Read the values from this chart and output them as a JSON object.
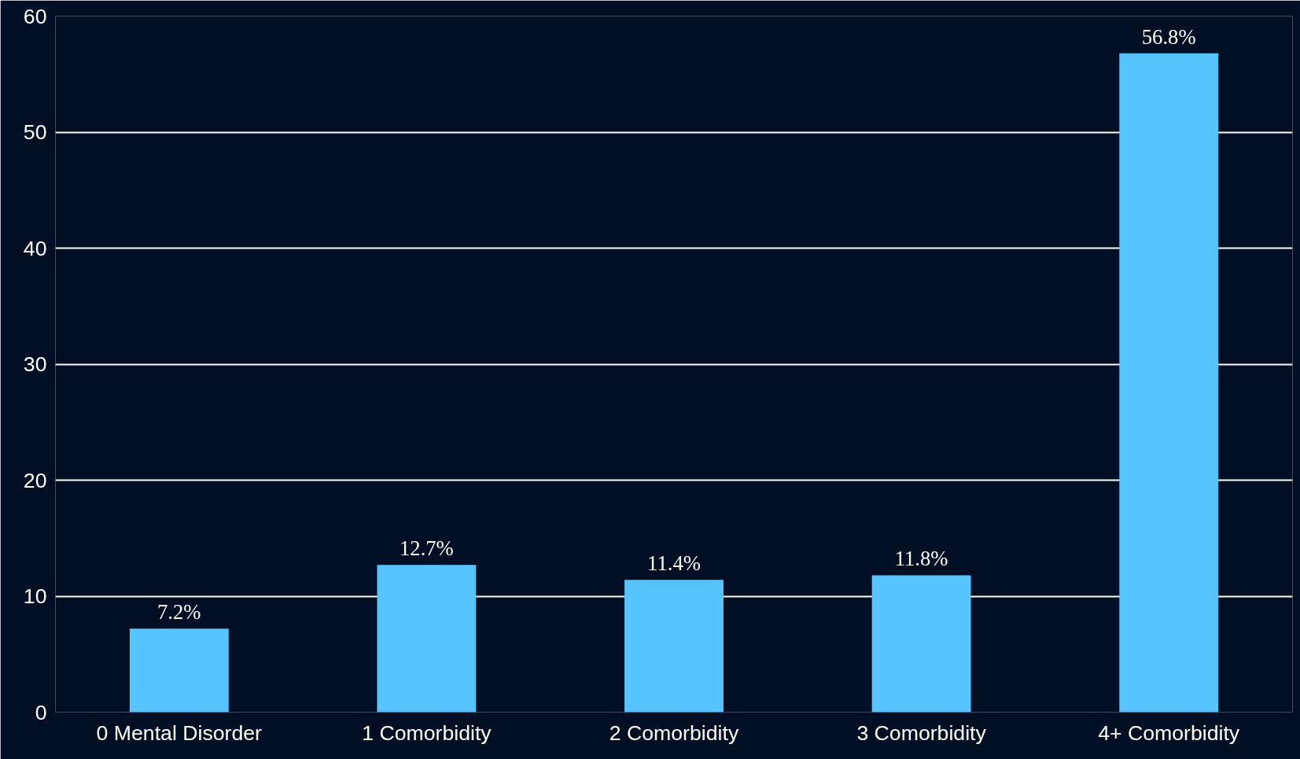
{
  "chart_data": {
    "type": "bar",
    "categories": [
      "0 Mental Disorder",
      "1 Comorbidity",
      "2 Comorbidity",
      "3 Comorbidity",
      "4+ Comorbidity"
    ],
    "values": [
      7.2,
      12.7,
      11.4,
      11.8,
      56.8
    ],
    "value_labels": [
      "7.2%",
      "12.7%",
      "11.4%",
      "11.8%",
      "56.8%"
    ],
    "color": "#55c4ff",
    "ylim": [
      0,
      60
    ],
    "yticks": [
      0,
      10,
      20,
      30,
      40,
      50,
      60
    ],
    "grid": "y"
  }
}
